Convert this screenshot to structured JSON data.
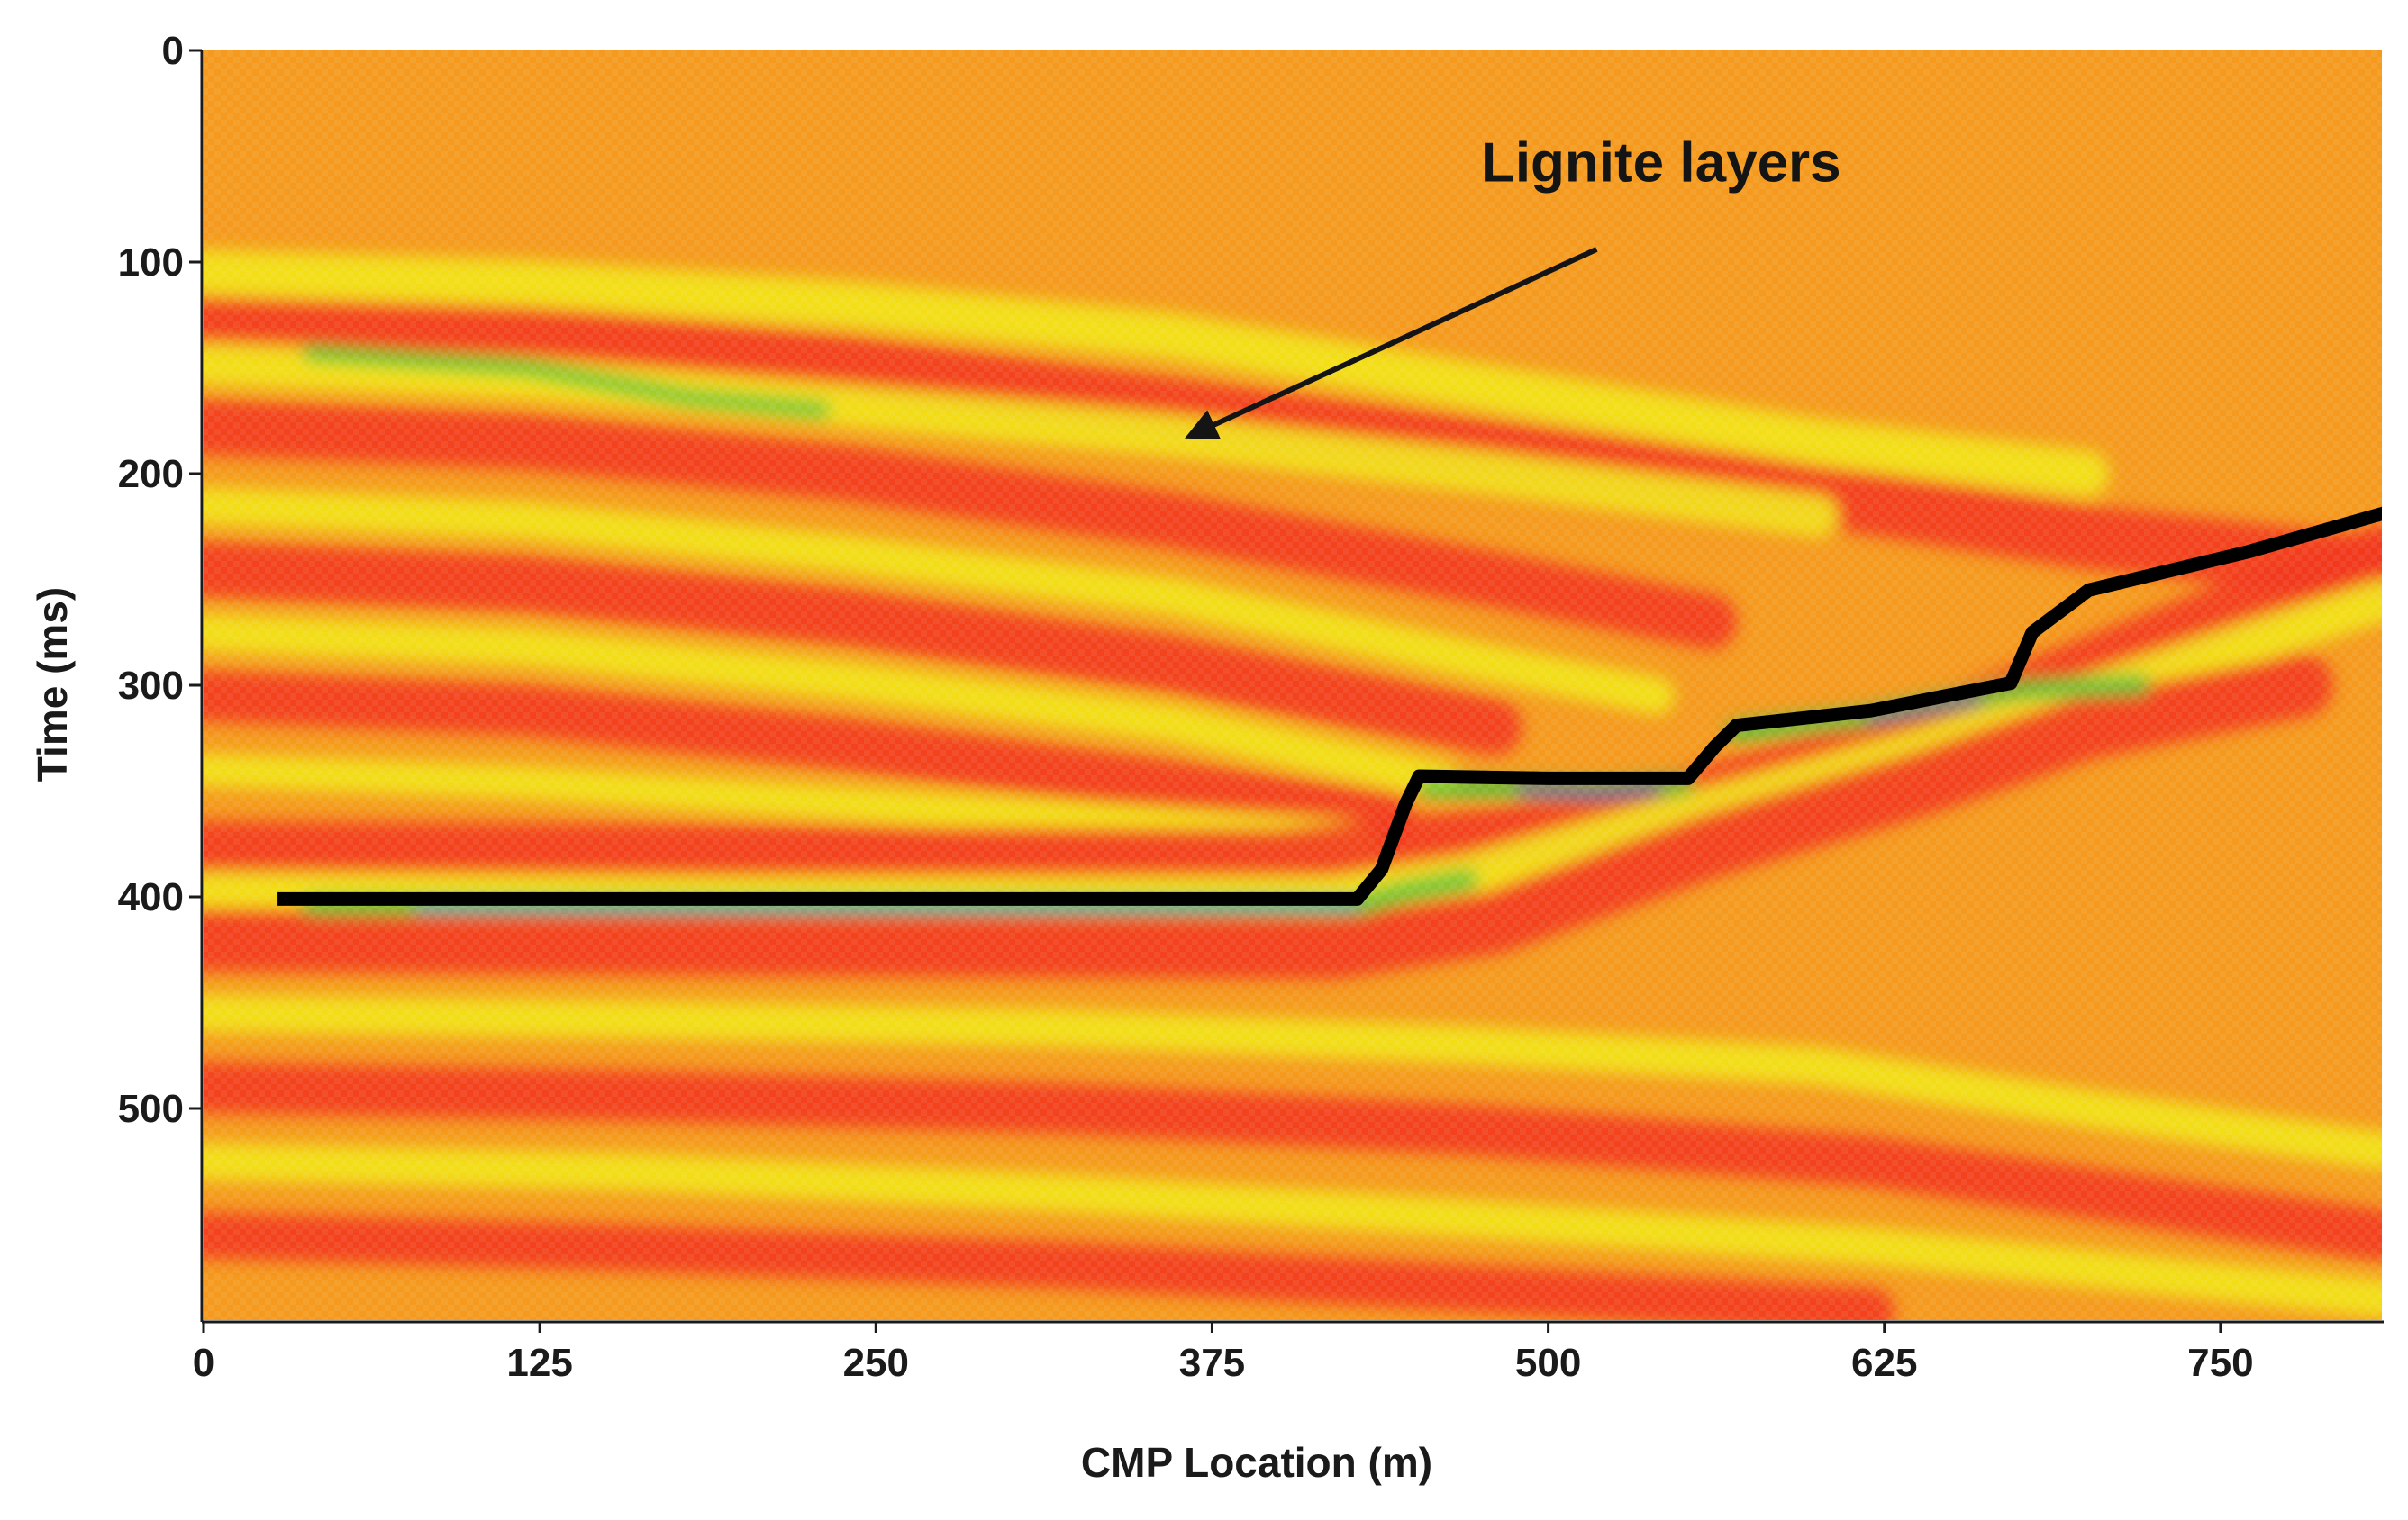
{
  "chart_data": {
    "type": "heatmap",
    "title": "",
    "xlabel": "CMP Location (m)",
    "ylabel": "Time (ms)",
    "xlim": [
      0,
      810
    ],
    "ylim": [
      0,
      600
    ],
    "y_inverted": true,
    "x_ticks": [
      0,
      125,
      250,
      375,
      500,
      625,
      750
    ],
    "x_tick_labels": [
      "0",
      "125",
      "250",
      "375",
      "500",
      "625",
      "750"
    ],
    "y_ticks": [
      0,
      100,
      200,
      300,
      400,
      500
    ],
    "y_tick_labels": [
      "0",
      "100",
      "200",
      "300",
      "400",
      "500"
    ],
    "grid": false,
    "colors": {
      "background_amplitude": "#f59a1e",
      "strong_negative": "#f23a1c",
      "positive": "#f2e41a",
      "high_positive": "#4fc23a",
      "peak": "#1e9ad6",
      "max": "#6a1fb0",
      "picked_horizon": "#000000"
    },
    "picked_horizon": [
      {
        "x": 30,
        "y": 401
      },
      {
        "x": 90,
        "y": 401
      },
      {
        "x": 180,
        "y": 401
      },
      {
        "x": 270,
        "y": 401
      },
      {
        "x": 360,
        "y": 401
      },
      {
        "x": 429,
        "y": 401
      },
      {
        "x": 438,
        "y": 387
      },
      {
        "x": 447,
        "y": 356
      },
      {
        "x": 452,
        "y": 343
      },
      {
        "x": 500,
        "y": 344
      },
      {
        "x": 552,
        "y": 344
      },
      {
        "x": 562,
        "y": 329
      },
      {
        "x": 570,
        "y": 319
      },
      {
        "x": 620,
        "y": 312
      },
      {
        "x": 672,
        "y": 299
      },
      {
        "x": 680,
        "y": 275
      },
      {
        "x": 701,
        "y": 255
      },
      {
        "x": 760,
        "y": 237
      },
      {
        "x": 810,
        "y": 219
      }
    ],
    "annotations": [
      {
        "text": "Lignite layers",
        "arrow_to": {
          "x": 367,
          "y": 182
        },
        "text_at": {
          "x": 475,
          "y": 62
        }
      }
    ]
  }
}
